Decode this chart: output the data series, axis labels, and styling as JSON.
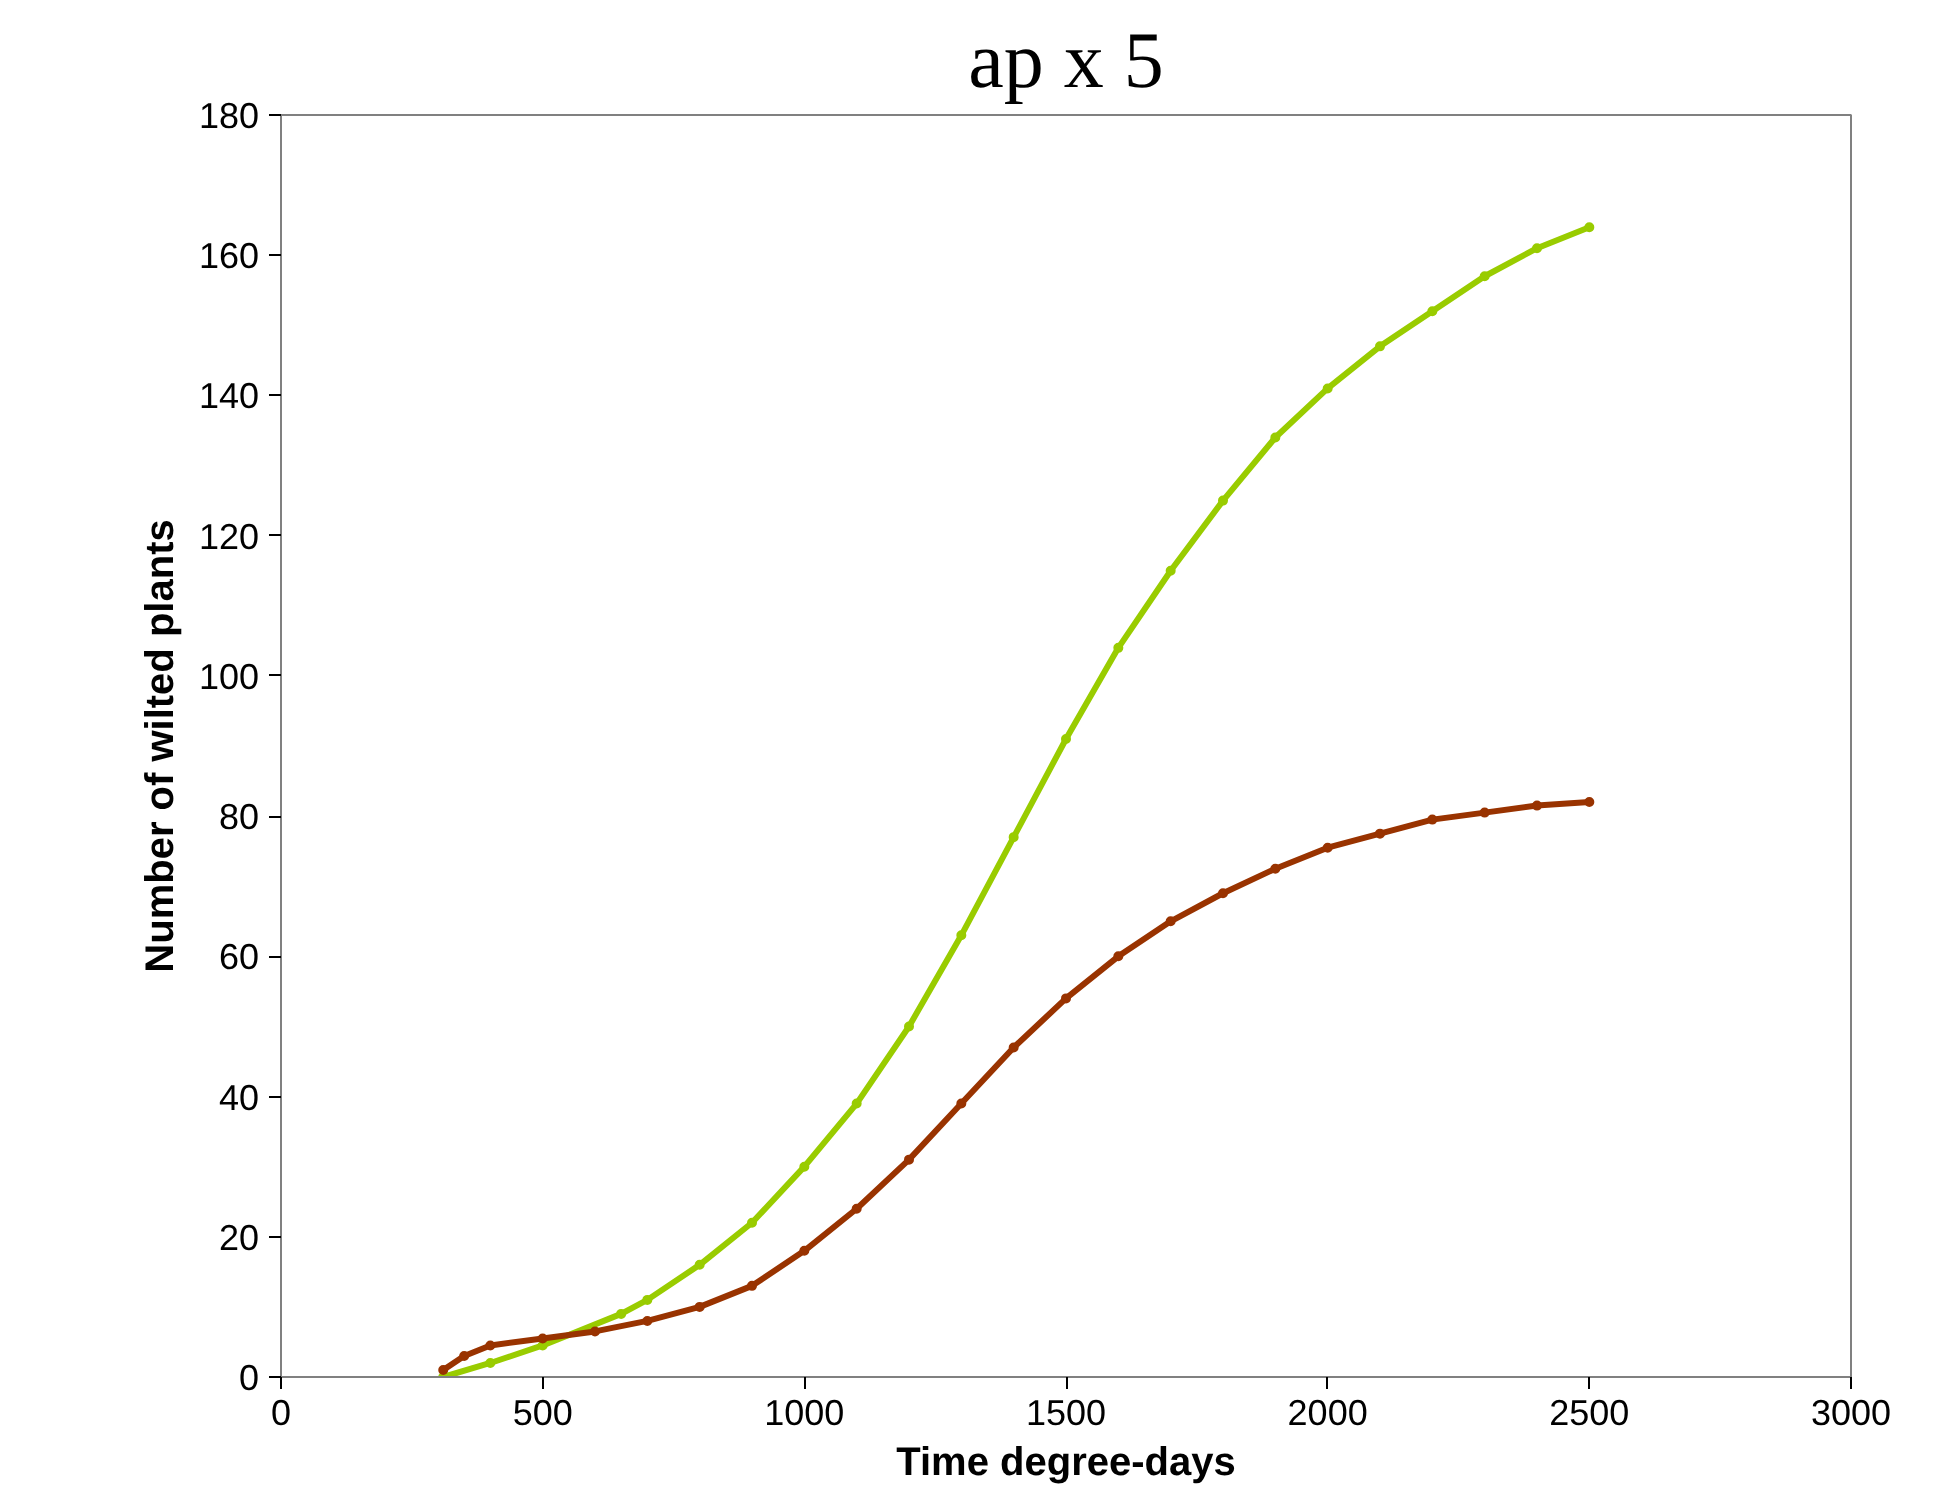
{
  "chart_data": {
    "type": "line",
    "title": "ap x 5",
    "xlabel": "Time degree-days",
    "ylabel": "Number of wilted plants",
    "xlim": [
      0,
      3000
    ],
    "xticks": [
      0,
      500,
      1000,
      1500,
      2000,
      2500,
      3000
    ],
    "ylim": [
      0,
      180
    ],
    "yticks": [
      0,
      20,
      40,
      60,
      80,
      100,
      120,
      140,
      160,
      180
    ],
    "grid": false,
    "marker": "circle",
    "line_style": "solid",
    "series": [
      {
        "color": "#99cc00",
        "x": [
          310,
          400,
          500,
          650,
          700,
          800,
          900,
          1000,
          1100,
          1200,
          1300,
          1400,
          1500,
          1600,
          1700,
          1800,
          1900,
          2000,
          2100,
          2200,
          2300,
          2400,
          2500
        ],
        "values": [
          0,
          2,
          4.5,
          9,
          11,
          16,
          22,
          30,
          39,
          50,
          63,
          77,
          91,
          104,
          115,
          125,
          134,
          141,
          147,
          152,
          157,
          161,
          164
        ]
      },
      {
        "color": "#993300",
        "x": [
          310,
          350,
          400,
          500,
          600,
          700,
          800,
          900,
          1000,
          1100,
          1200,
          1300,
          1400,
          1500,
          1600,
          1700,
          1800,
          1900,
          2000,
          2100,
          2200,
          2300,
          2400,
          2500
        ],
        "values": [
          1,
          3,
          4.5,
          5.5,
          6.5,
          8,
          10,
          13,
          18,
          24,
          31,
          39,
          47,
          54,
          60,
          65,
          69,
          72.5,
          75.5,
          77.5,
          79.5,
          80.5,
          81.5,
          82
        ]
      }
    ]
  }
}
